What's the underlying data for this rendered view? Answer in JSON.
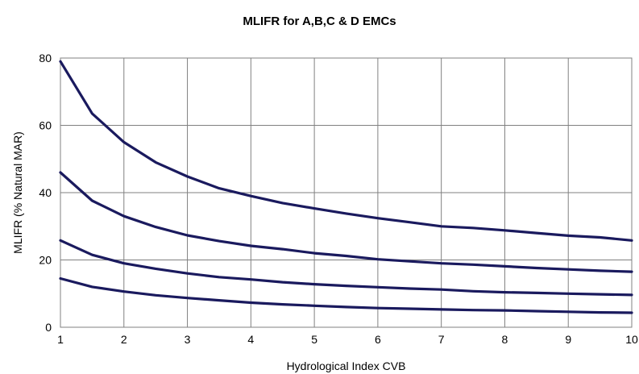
{
  "chart_data": {
    "type": "line",
    "title": "MLIFR for A,B,C & D EMCs",
    "xlabel": "Hydrological Index CVB",
    "ylabel": "MLIFR (% Natural MAR)",
    "xlim": [
      1,
      10
    ],
    "ylim": [
      0,
      80
    ],
    "x_ticks": [
      1,
      2,
      3,
      4,
      5,
      6,
      7,
      8,
      9,
      10
    ],
    "y_ticks": [
      0,
      20,
      40,
      60,
      80
    ],
    "grid": true,
    "legend": "none",
    "line_color": "#1a1a5e",
    "series": [
      {
        "x": [
          1,
          1.5,
          2,
          2.5,
          3,
          3.5,
          4,
          4.5,
          5,
          5.5,
          6,
          6.5,
          7,
          7.5,
          8,
          8.5,
          9,
          9.5,
          10
        ],
        "values": [
          79,
          63.5,
          55,
          49,
          44.8,
          41.3,
          39,
          36.9,
          35.3,
          33.8,
          32.4,
          31.2,
          30,
          29.5,
          28.8,
          28,
          27.2,
          26.7,
          25.8
        ]
      },
      {
        "x": [
          1,
          1.5,
          2,
          2.5,
          3,
          3.5,
          4,
          4.5,
          5,
          5.5,
          6,
          6.5,
          7,
          7.5,
          8,
          8.5,
          9,
          9.5,
          10
        ],
        "values": [
          46,
          37.6,
          33,
          29.8,
          27.3,
          25.6,
          24.2,
          23.2,
          22,
          21.2,
          20.2,
          19.6,
          19,
          18.6,
          18.1,
          17.6,
          17.2,
          16.8,
          16.5
        ]
      },
      {
        "x": [
          1,
          1.5,
          2,
          2.5,
          3,
          3.5,
          4,
          4.5,
          5,
          5.5,
          6,
          6.5,
          7,
          7.5,
          8,
          8.5,
          9,
          9.5,
          10
        ],
        "values": [
          25.8,
          21.5,
          19,
          17.4,
          16,
          14.9,
          14.2,
          13.4,
          12.8,
          12.3,
          11.9,
          11.5,
          11.2,
          10.7,
          10.4,
          10.2,
          10,
          9.8,
          9.6
        ]
      },
      {
        "x": [
          1,
          1.5,
          2,
          2.5,
          3,
          3.5,
          4,
          4.5,
          5,
          5.5,
          6,
          6.5,
          7,
          7.5,
          8,
          8.5,
          9,
          9.5,
          10
        ],
        "values": [
          14.5,
          12,
          10.6,
          9.5,
          8.7,
          8,
          7.3,
          6.8,
          6.4,
          6,
          5.7,
          5.5,
          5.3,
          5.1,
          5,
          4.8,
          4.6,
          4.4,
          4.3
        ]
      }
    ]
  }
}
